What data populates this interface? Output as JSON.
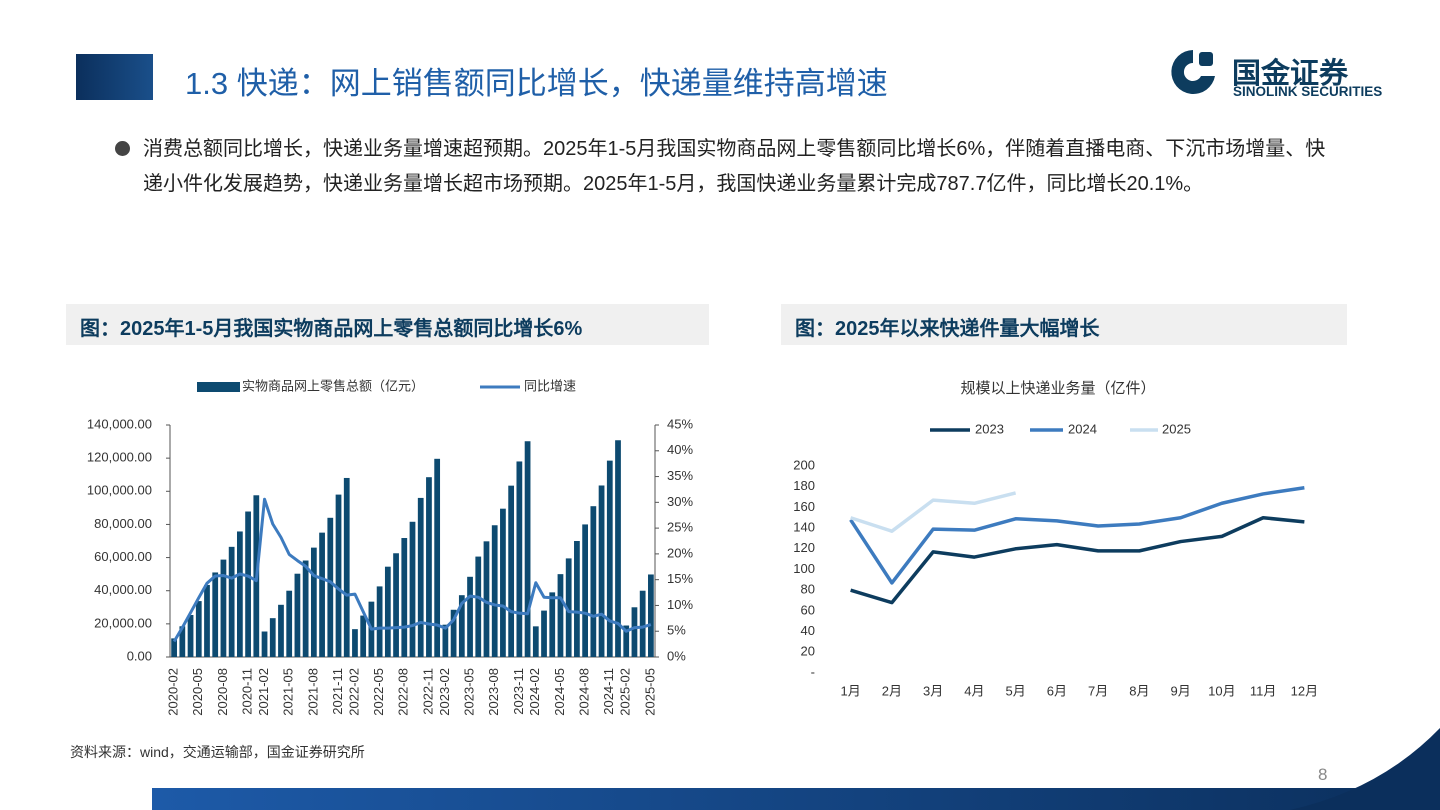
{
  "header": {
    "title": "1.3 快递：网上销售额同比增长，快递量维持高增速",
    "logo": "国金证券",
    "logo_en": "SINOLINK SECURITIES"
  },
  "bullet": "消费总额同比增长，快递业务量增速超预期。2025年1-5月我国实物商品网上零售额同比增长6%，伴随着直播电商、下沉市场增量、快递小件化发展趋势，快递业务量增长超市场预期。2025年1-5月，我国快递业务量累计完成787.7亿件，同比增长20.1%。",
  "source": "资料来源：wind，交通运输部，国金证券研究所",
  "page_number": 8,
  "chart_data": [
    {
      "type": "bar",
      "title": "图：2025年1-5月我国实物商品网上零售总额同比增长6%",
      "legend": "top",
      "grid": false,
      "categories": [
        "2020-02",
        null,
        null,
        "2020-05",
        null,
        null,
        "2020-08",
        null,
        null,
        "2020-11",
        null,
        "2021-02",
        null,
        null,
        "2021-05",
        null,
        null,
        "2021-08",
        null,
        null,
        "2021-11",
        null,
        "2022-02",
        null,
        null,
        "2022-05",
        null,
        null,
        "2022-08",
        null,
        null,
        "2022-11",
        null,
        "2023-02",
        null,
        null,
        "2023-05",
        null,
        null,
        "2023-08",
        null,
        null,
        "2023-11",
        null,
        "2024-02",
        null,
        null,
        "2024-05",
        null,
        null,
        "2024-08",
        null,
        null,
        "2024-11",
        null,
        "2025-02",
        null,
        null,
        "2025-05"
      ],
      "series": [
        {
          "name": "实物商品网上零售总额（亿元）",
          "type": "bar",
          "color": "#0d4a70",
          "values": [
            11233,
            18536,
            25352,
            33739,
            43481,
            51012,
            58772,
            66477,
            75752,
            87792,
            97590,
            15381,
            23436,
            31502,
            40000,
            50263,
            58218,
            66000,
            75042,
            84000,
            98000,
            108042,
            16800,
            25000,
            33400,
            42600,
            54500,
            62600,
            71800,
            81600,
            96000,
            108500,
            119600,
            19500,
            28500,
            37300,
            48400,
            60600,
            69800,
            79500,
            89500,
            103400,
            118000,
            130200,
            18500,
            28000,
            39000,
            50000,
            59500,
            70000,
            80000,
            91000,
            103500,
            118500,
            130800,
            19000,
            30000,
            40000,
            49800
          ]
        },
        {
          "name": "同比增速",
          "type": "line",
          "axis": "y2",
          "color": "#3d7bbf",
          "values": [
            3.0,
            5.7,
            8.6,
            11.5,
            14.3,
            15.7,
            15.8,
            15.3,
            16.1,
            15.7,
            14.8,
            30.6,
            25.8,
            23.2,
            19.9,
            18.7,
            17.6,
            15.8,
            15.2,
            14.6,
            13.2,
            12.0,
            12.2,
            8.8,
            5.4,
            5.6,
            5.6,
            5.7,
            5.8,
            6.1,
            6.7,
            6.4,
            6.2,
            5.6,
            7.2,
            10.4,
            11.8,
            11.6,
            10.6,
            10.1,
            9.9,
            8.8,
            8.5,
            8.4,
            14.4,
            11.6,
            11.5,
            11.5,
            8.8,
            8.7,
            8.5,
            7.9,
            8.3,
            7.0,
            6.5,
            5.0,
            5.7,
            5.8,
            6.3
          ]
        }
      ],
      "ylim": [
        0,
        140000
      ],
      "yticks": [
        {
          "value": 0,
          "label": "0.00"
        },
        {
          "value": 20000,
          "label": "20,000.00"
        },
        {
          "value": 40000,
          "label": "40,000.00"
        },
        {
          "value": 60000,
          "label": "60,000.00"
        },
        {
          "value": 80000,
          "label": "80,000.00"
        },
        {
          "value": 100000,
          "label": "100,000.00"
        },
        {
          "value": 120000,
          "label": "120,000.00"
        },
        {
          "value": 140000,
          "label": "140,000.00"
        }
      ],
      "y2lim": [
        0,
        45
      ],
      "y2ticks": [
        {
          "value": 0,
          "label": "0%"
        },
        {
          "value": 5,
          "label": "5%"
        },
        {
          "value": 10,
          "label": "10%"
        },
        {
          "value": 15,
          "label": "15%"
        },
        {
          "value": 20,
          "label": "20%"
        },
        {
          "value": 25,
          "label": "25%"
        },
        {
          "value": 30,
          "label": "30%"
        },
        {
          "value": 35,
          "label": "35%"
        },
        {
          "value": 40,
          "label": "40%"
        },
        {
          "value": 45,
          "label": "45%"
        }
      ]
    },
    {
      "type": "line",
      "title": "图：2025年以来快递件量大幅增长",
      "subtitle": "规模以上快递业务量（亿件）",
      "legend": "top",
      "grid": false,
      "categories": [
        "1月",
        "2月",
        "3月",
        "4月",
        "5月",
        "6月",
        "7月",
        "8月",
        "9月",
        "10月",
        "11月",
        "12月"
      ],
      "series": [
        {
          "name": "2023",
          "color": "#0d3c5e",
          "values": [
            80,
            68,
            117,
            112,
            120,
            124,
            118,
            118,
            127,
            132,
            150,
            146
          ]
        },
        {
          "name": "2024",
          "color": "#3d7bbf",
          "values": [
            148,
            87,
            139,
            138,
            149,
            147,
            142,
            144,
            150,
            164,
            173,
            179
          ]
        },
        {
          "name": "2025",
          "color": "#c9dff0",
          "values": [
            150,
            137,
            167,
            164,
            174,
            null,
            null,
            null,
            null,
            null,
            null,
            null
          ]
        }
      ],
      "ylim": [
        0,
        200
      ],
      "yticks": [
        {
          "value": 0,
          "label": "-"
        },
        20,
        40,
        60,
        80,
        100,
        120,
        140,
        160,
        180,
        200
      ]
    }
  ]
}
